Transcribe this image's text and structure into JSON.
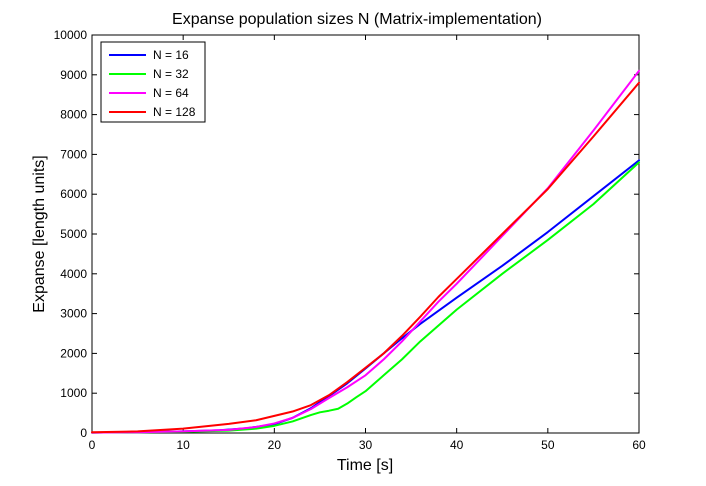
{
  "chart_data": {
    "type": "line",
    "title": "Expanse population sizes N (Matrix-implementation)",
    "xlabel": "Time [s]",
    "ylabel": "Expanse [length units]",
    "xlim": [
      0,
      60
    ],
    "ylim": [
      0,
      10000
    ],
    "xticks": [
      "0",
      "10",
      "20",
      "30",
      "40",
      "50",
      "60"
    ],
    "yticks": [
      "0",
      "1000",
      "2000",
      "3000",
      "4000",
      "5000",
      "6000",
      "7000",
      "8000",
      "9000",
      "10000"
    ],
    "grid": false,
    "legend_position": "top-left",
    "series": [
      {
        "name": "N = 16",
        "color": "#0000ff",
        "x": [
          0,
          5,
          10,
          14,
          17,
          20,
          22,
          24,
          26,
          28,
          30,
          32,
          34,
          36,
          40,
          45,
          50,
          55,
          60
        ],
        "y": [
          10,
          20,
          40,
          70,
          120,
          220,
          380,
          620,
          930,
          1250,
          1620,
          2000,
          2380,
          2740,
          3400,
          4200,
          5050,
          5950,
          6850
        ]
      },
      {
        "name": "N = 32",
        "color": "#00ff00",
        "x": [
          0,
          5,
          10,
          15,
          18,
          20,
          22,
          24,
          25,
          26,
          27,
          28,
          29,
          30,
          32,
          34,
          36,
          40,
          45,
          50,
          55,
          60
        ],
        "y": [
          10,
          20,
          30,
          60,
          110,
          180,
          290,
          450,
          520,
          560,
          610,
          740,
          900,
          1050,
          1450,
          1850,
          2300,
          3100,
          4000,
          4850,
          5750,
          6800
        ]
      },
      {
        "name": "N = 64",
        "color": "#ff00ff",
        "x": [
          0,
          5,
          10,
          15,
          18,
          20,
          22,
          24,
          26,
          28,
          30,
          32,
          34,
          36,
          38,
          40,
          45,
          50,
          55,
          60
        ],
        "y": [
          10,
          20,
          40,
          80,
          150,
          240,
          380,
          600,
          880,
          1150,
          1450,
          1850,
          2300,
          2800,
          3300,
          3750,
          4950,
          6150,
          7600,
          9100
        ]
      },
      {
        "name": "N = 128",
        "color": "#ff0000",
        "x": [
          0,
          5,
          10,
          15,
          18,
          20,
          22,
          24,
          26,
          28,
          30,
          32,
          34,
          36,
          38,
          40,
          45,
          50,
          55,
          60
        ],
        "y": [
          20,
          40,
          110,
          230,
          320,
          430,
          540,
          700,
          950,
          1280,
          1640,
          2000,
          2440,
          2920,
          3420,
          3870,
          5000,
          6130,
          7450,
          8800
        ]
      }
    ]
  }
}
